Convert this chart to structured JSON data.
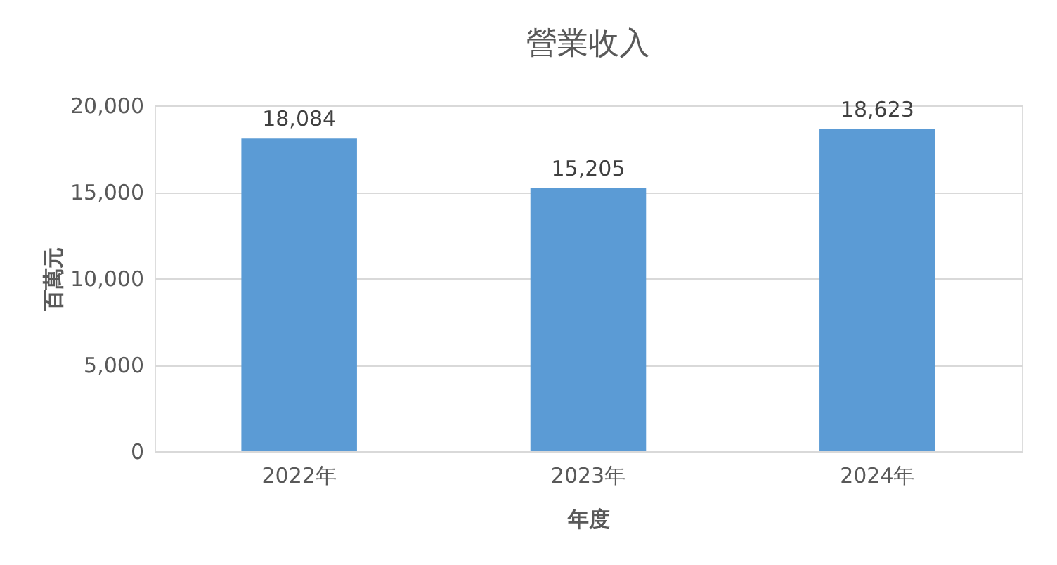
{
  "chart_data": {
    "type": "bar",
    "title": "營業收入",
    "xlabel": "年度",
    "ylabel": "百萬元",
    "categories": [
      "2022年",
      "2023年",
      "2024年"
    ],
    "values": [
      18084,
      15205,
      18623
    ],
    "color": "#5b9bd5",
    "value_labels": [
      "18,084",
      "15,205",
      "18,623"
    ],
    "ylim": [
      0,
      20000
    ],
    "yticks": [
      0,
      {
        "value": 5000,
        "label": "5,000"
      },
      {
        "value": 10000,
        "label": "10,000"
      },
      {
        "value": 15000,
        "label": "15,000"
      },
      {
        "value": 20000,
        "label": "20,000"
      }
    ],
    "grid": "y"
  }
}
